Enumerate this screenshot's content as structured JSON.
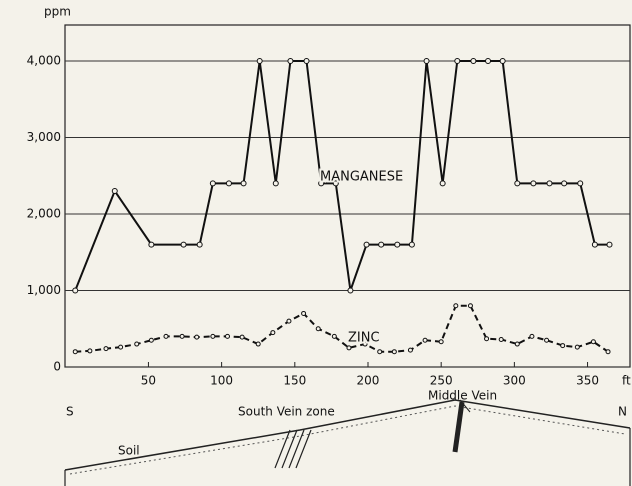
{
  "chart_data": {
    "type": "line",
    "y_label": "ppm",
    "x_label": "ft",
    "xlim": [
      -7,
      379
    ],
    "ylim": [
      0,
      4470
    ],
    "xticks": [
      50,
      100,
      150,
      200,
      250,
      300,
      350
    ],
    "yticks": [
      0,
      {
        "value": 1000,
        "label": "1,000"
      },
      {
        "value": 2000,
        "label": "2,000"
      },
      {
        "value": 3000,
        "label": "3,000"
      },
      {
        "value": 4000,
        "label": "4,000"
      }
    ],
    "grid": true,
    "series": [
      {
        "name": "MANGANESE",
        "color": "#111111",
        "style": "solid",
        "x": [
          0,
          27,
          52,
          74,
          85,
          94,
          105,
          115,
          126,
          137,
          147,
          158,
          168,
          178,
          188,
          199,
          209,
          220,
          230,
          240,
          251,
          261,
          272,
          282,
          292,
          302,
          313,
          324,
          334,
          345,
          355,
          365
        ],
        "values": [
          1000,
          2300,
          1600,
          1600,
          1600,
          2400,
          2400,
          2400,
          4000,
          2400,
          4000,
          4000,
          2400,
          2400,
          1000,
          1600,
          1600,
          1600,
          1600,
          4000,
          2400,
          4000,
          4000,
          4000,
          4000,
          2400,
          2400,
          2400,
          2400,
          2400,
          1600,
          1600
        ]
      },
      {
        "name": "ZINC",
        "color": "#111111",
        "style": "dashed",
        "x": [
          0,
          10,
          21,
          31,
          42,
          52,
          62,
          73,
          83,
          94,
          104,
          114,
          125,
          135,
          146,
          156,
          166,
          177,
          187,
          198,
          208,
          218,
          229,
          239,
          250,
          260,
          270,
          281,
          291,
          302,
          312,
          322,
          333,
          343,
          354,
          364
        ],
        "values": [
          200,
          210,
          240,
          260,
          300,
          350,
          400,
          400,
          390,
          400,
          400,
          390,
          300,
          450,
          600,
          700,
          500,
          400,
          250,
          300,
          200,
          200,
          220,
          350,
          330,
          800,
          800,
          370,
          360,
          300,
          400,
          350,
          280,
          260,
          330,
          200
        ]
      }
    ]
  },
  "section": {
    "south": "S",
    "north": "N",
    "south_vein": "South Vein zone",
    "middle_vein": "Middle Vein",
    "soil": "Soil"
  }
}
